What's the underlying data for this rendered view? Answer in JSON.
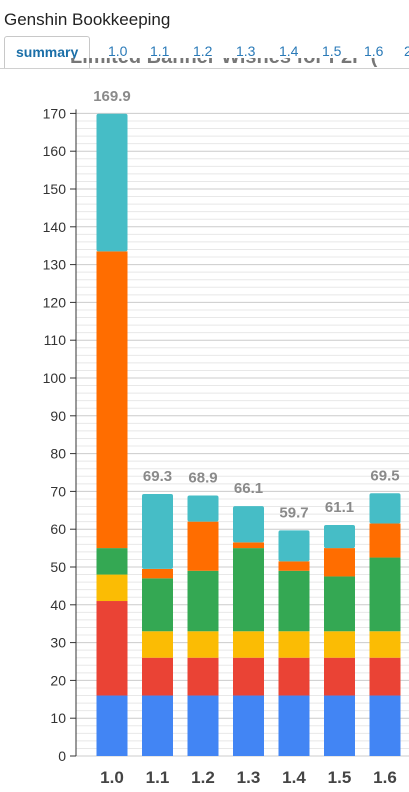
{
  "app": {
    "title": "Genshin Bookkeeping"
  },
  "tabs": [
    {
      "label": "summary",
      "active": true
    },
    {
      "label": "1.0"
    },
    {
      "label": "1.1"
    },
    {
      "label": "1.2"
    },
    {
      "label": "1.3"
    },
    {
      "label": "1.4"
    },
    {
      "label": "1.5"
    },
    {
      "label": "1.6"
    },
    {
      "label": "2"
    }
  ],
  "chart_title_partial": "Limited Banner Wishes for F2P (",
  "colors": {
    "blue": "#4285f4",
    "red": "#ea4335",
    "yellow": "#fbbc04",
    "green": "#34a853",
    "orange": "#ff6d00",
    "teal": "#46bdc6"
  },
  "chart_data": {
    "type": "bar",
    "stacked": true,
    "categories": [
      "1.0",
      "1.1",
      "1.2",
      "1.3",
      "1.4",
      "1.5",
      "1.6"
    ],
    "ylim": [
      0,
      170
    ],
    "yticks": [
      0,
      10,
      20,
      30,
      40,
      50,
      60,
      70,
      80,
      90,
      100,
      110,
      120,
      130,
      140,
      150,
      160,
      170
    ],
    "grid": true,
    "series": [
      {
        "color": "blue",
        "values": [
          16,
          16,
          16,
          16,
          16,
          16,
          16
        ]
      },
      {
        "color": "red",
        "values": [
          25,
          10,
          10,
          10,
          10,
          10,
          10
        ]
      },
      {
        "color": "yellow",
        "values": [
          7,
          7,
          7,
          7,
          7,
          7,
          7
        ]
      },
      {
        "color": "green",
        "values": [
          7,
          14,
          16,
          22,
          16,
          14.5,
          19.5
        ]
      },
      {
        "color": "orange",
        "values": [
          78.5,
          2.5,
          13,
          1.5,
          2.5,
          7.5,
          9
        ]
      },
      {
        "color": "teal",
        "values": [
          36.4,
          19.8,
          6.9,
          9.6,
          8.2,
          6.1,
          8
        ]
      }
    ],
    "totals": [
      "169.9",
      "69.3",
      "68.9",
      "66.1",
      "59.7",
      "61.1",
      "69.5"
    ]
  }
}
